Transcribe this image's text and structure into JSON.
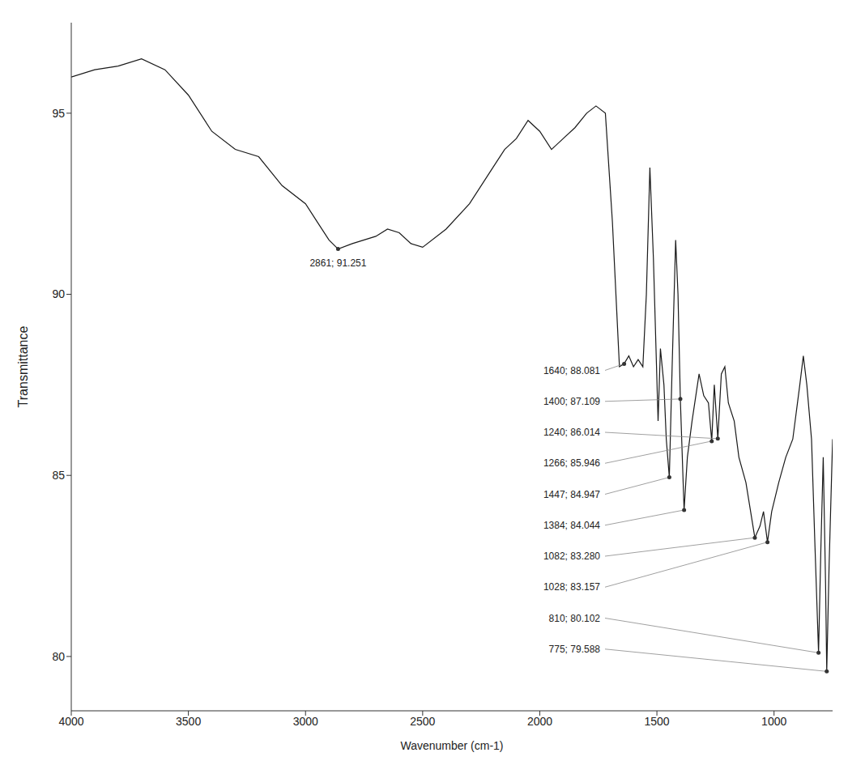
{
  "chart_data": {
    "type": "line",
    "x_label": "Wavenumber (cm-1)",
    "y_label": "Transmittance",
    "color": "#1a1a1a",
    "xlim": [
      4000,
      750
    ],
    "xticks": [
      4000,
      3500,
      3000,
      2500,
      2000,
      1500,
      1000
    ],
    "ylim": [
      78.5,
      97.5
    ],
    "yticks": [
      80,
      85,
      90,
      95
    ],
    "grid": false,
    "x": [
      4000,
      3900,
      3800,
      3700,
      3600,
      3500,
      3400,
      3300,
      3200,
      3100,
      3000,
      2950,
      2900,
      2861,
      2800,
      2700,
      2650,
      2600,
      2550,
      2500,
      2400,
      2300,
      2200,
      2150,
      2100,
      2050,
      2000,
      1950,
      1900,
      1850,
      1800,
      1760,
      1720,
      1690,
      1660,
      1640,
      1620,
      1600,
      1580,
      1560,
      1545,
      1530,
      1515,
      1495,
      1485,
      1470,
      1460,
      1447,
      1435,
      1420,
      1410,
      1400,
      1384,
      1370,
      1350,
      1320,
      1300,
      1280,
      1266,
      1255,
      1240,
      1225,
      1210,
      1195,
      1170,
      1150,
      1120,
      1100,
      1082,
      1060,
      1045,
      1028,
      1010,
      980,
      950,
      920,
      890,
      875,
      860,
      840,
      825,
      810,
      800,
      790,
      780,
      775,
      765,
      750
    ],
    "values": [
      96.0,
      96.2,
      96.3,
      96.5,
      96.2,
      95.5,
      94.5,
      94.0,
      93.8,
      93.0,
      92.5,
      92.0,
      91.5,
      91.251,
      91.4,
      91.6,
      91.8,
      91.7,
      91.4,
      91.3,
      91.8,
      92.5,
      93.5,
      94.0,
      94.3,
      94.8,
      94.5,
      94.0,
      94.3,
      94.6,
      95.0,
      95.2,
      95.0,
      92.0,
      88.0,
      88.081,
      88.3,
      88.0,
      88.2,
      88.0,
      90.0,
      93.5,
      91.0,
      86.5,
      88.5,
      87.5,
      86.0,
      84.947,
      88.0,
      91.5,
      90.0,
      87.109,
      84.044,
      85.5,
      86.5,
      87.8,
      87.2,
      87.0,
      85.946,
      87.5,
      86.014,
      87.8,
      88.0,
      87.0,
      86.5,
      85.5,
      84.8,
      84.0,
      83.28,
      83.6,
      84.0,
      83.157,
      84.0,
      84.8,
      85.5,
      86.0,
      87.5,
      88.3,
      87.5,
      86.0,
      83.0,
      80.102,
      83.0,
      85.5,
      82.0,
      79.588,
      82.5,
      86.0
    ],
    "annotations": [
      {
        "x": 2861,
        "y": 91.251,
        "label": "2861; 91.251"
      },
      {
        "x": 1640,
        "y": 88.081,
        "label": "1640; 88.081"
      },
      {
        "x": 1400,
        "y": 87.109,
        "label": "1400; 87.109"
      },
      {
        "x": 1266,
        "y": 85.946,
        "label": "1266; 85.946"
      },
      {
        "x": 1240,
        "y": 86.014,
        "label": "1240; 86.014"
      },
      {
        "x": 1447,
        "y": 84.947,
        "label": "1447; 84.947"
      },
      {
        "x": 1384,
        "y": 84.044,
        "label": "1384; 84.044"
      },
      {
        "x": 1082,
        "y": 83.28,
        "label": "1082; 83.280"
      },
      {
        "x": 1028,
        "y": 83.157,
        "label": "1028; 83.157"
      },
      {
        "x": 810,
        "y": 80.102,
        "label": "810; 80.102"
      },
      {
        "x": 775,
        "y": 79.588,
        "label": "775; 79.588"
      }
    ]
  }
}
